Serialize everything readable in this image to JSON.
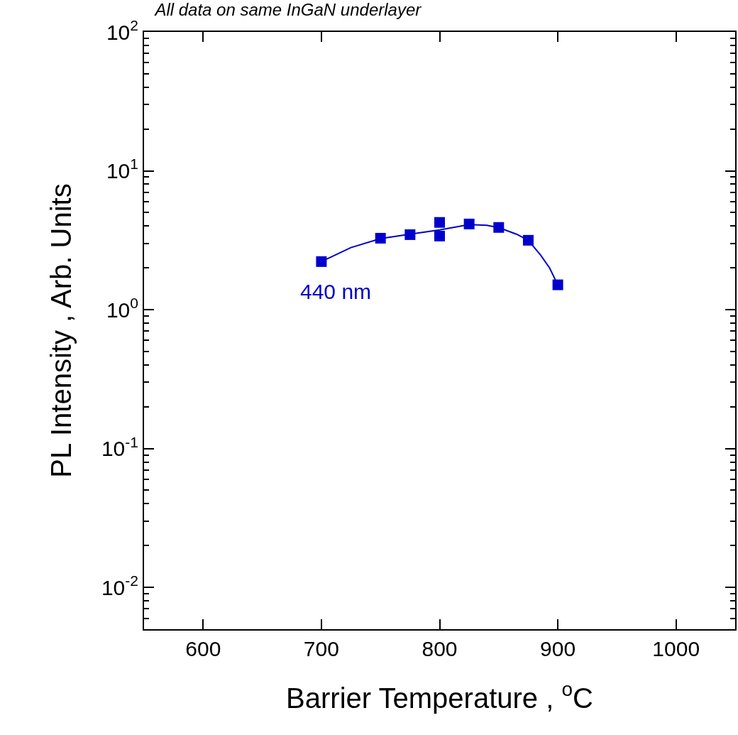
{
  "chart_data": {
    "type": "scatter",
    "title": "All data on same InGaN underlayer",
    "xlabel": "Barrier Temperature , $^{o}$C",
    "ylabel": "PL Intensity , Arb. Units",
    "series": [
      {
        "color": "#0000cc",
        "marker": "square",
        "x": [
          700,
          750,
          775,
          800,
          800,
          825,
          850,
          875,
          900
        ],
        "values": [
          2.22,
          3.27,
          3.47,
          4.25,
          3.39,
          4.14,
          3.91,
          3.16,
          1.51
        ]
      },
      {
        "type": "line",
        "color": "#0000cc",
        "marker": "none",
        "line_style": "solid",
        "x": [
          700,
          725,
          750,
          775,
          800,
          825,
          840,
          850,
          865,
          875,
          885,
          893,
          900
        ],
        "values": [
          2.22,
          2.8,
          3.25,
          3.5,
          3.75,
          4.1,
          4.05,
          3.9,
          3.5,
          3.16,
          2.5,
          2.0,
          1.51
        ]
      }
    ],
    "annotations": [
      "440 nm"
    ],
    "log": "y",
    "xlim": [
      550,
      1050
    ],
    "xticks": [
      600,
      700,
      800,
      900,
      1000
    ],
    "ylim": [
      0.005,
      100
    ],
    "yticks": [
      {
        "value": 0.01,
        "label": "10$^{-2}$"
      },
      {
        "value": 0.1,
        "label": "10$^{-1}$"
      },
      {
        "value": 1,
        "label": "10$^{0}$"
      },
      {
        "value": 10,
        "label": "10$^{1}$"
      },
      {
        "value": 100,
        "label": "10$^{2}$"
      }
    ]
  }
}
